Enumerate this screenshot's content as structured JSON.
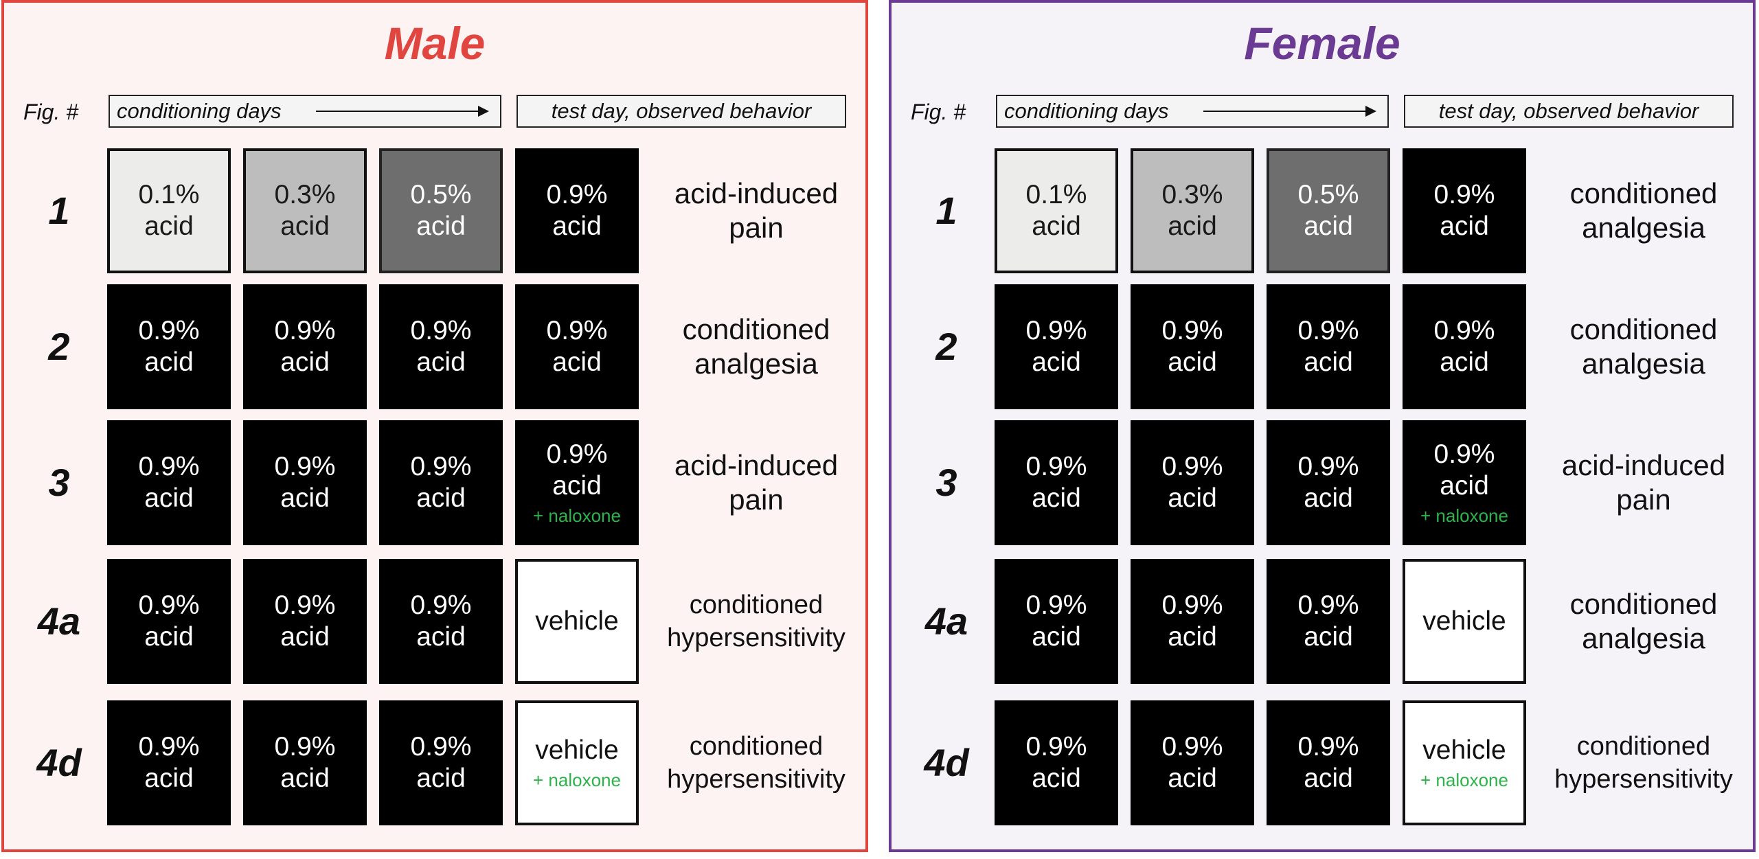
{
  "panels": {
    "male": {
      "title": "Male",
      "color": "#e0453f",
      "headers": {
        "fig": "Fig. #",
        "conditioning": "conditioning days",
        "test": "test day, observed behavior"
      },
      "rows": [
        {
          "fig": "1",
          "cells": [
            {
              "line1": "0.1%",
              "line2": "acid",
              "style": "light-gray"
            },
            {
              "line1": "0.3%",
              "line2": "acid",
              "style": "mid-gray"
            },
            {
              "line1": "0.5%",
              "line2": "acid",
              "style": "dark-gray"
            },
            {
              "line1": "0.9%",
              "line2": "acid",
              "style": "black"
            }
          ],
          "behavior": "acid-induced\npain"
        },
        {
          "fig": "2",
          "cells": [
            {
              "line1": "0.9%",
              "line2": "acid",
              "style": "black"
            },
            {
              "line1": "0.9%",
              "line2": "acid",
              "style": "black"
            },
            {
              "line1": "0.9%",
              "line2": "acid",
              "style": "black"
            },
            {
              "line1": "0.9%",
              "line2": "acid",
              "style": "black"
            }
          ],
          "behavior": "conditioned\nanalgesia"
        },
        {
          "fig": "3",
          "cells": [
            {
              "line1": "0.9%",
              "line2": "acid",
              "style": "black"
            },
            {
              "line1": "0.9%",
              "line2": "acid",
              "style": "black"
            },
            {
              "line1": "0.9%",
              "line2": "acid",
              "style": "black"
            },
            {
              "line1": "0.9%",
              "line2": "acid",
              "note": "+ naloxone",
              "style": "black"
            }
          ],
          "behavior": "acid-induced\npain"
        },
        {
          "fig": "4a",
          "cells": [
            {
              "line1": "0.9%",
              "line2": "acid",
              "style": "black"
            },
            {
              "line1": "0.9%",
              "line2": "acid",
              "style": "black"
            },
            {
              "line1": "0.9%",
              "line2": "acid",
              "style": "black"
            },
            {
              "line1": "vehicle",
              "style": "white"
            }
          ],
          "behavior": "conditioned\nhypersensitivity"
        },
        {
          "fig": "4d",
          "cells": [
            {
              "line1": "0.9%",
              "line2": "acid",
              "style": "black"
            },
            {
              "line1": "0.9%",
              "line2": "acid",
              "style": "black"
            },
            {
              "line1": "0.9%",
              "line2": "acid",
              "style": "black"
            },
            {
              "line1": "vehicle",
              "note": "+ naloxone",
              "style": "white"
            }
          ],
          "behavior": "conditioned\nhypersensitivity"
        }
      ]
    },
    "female": {
      "title": "Female",
      "color": "#6b3b94",
      "headers": {
        "fig": "Fig. #",
        "conditioning": "conditioning days",
        "test": "test day, observed behavior"
      },
      "rows": [
        {
          "fig": "1",
          "cells": [
            {
              "line1": "0.1%",
              "line2": "acid",
              "style": "light-gray"
            },
            {
              "line1": "0.3%",
              "line2": "acid",
              "style": "mid-gray"
            },
            {
              "line1": "0.5%",
              "line2": "acid",
              "style": "dark-gray"
            },
            {
              "line1": "0.9%",
              "line2": "acid",
              "style": "black"
            }
          ],
          "behavior": "conditioned\nanalgesia"
        },
        {
          "fig": "2",
          "cells": [
            {
              "line1": "0.9%",
              "line2": "acid",
              "style": "black"
            },
            {
              "line1": "0.9%",
              "line2": "acid",
              "style": "black"
            },
            {
              "line1": "0.9%",
              "line2": "acid",
              "style": "black"
            },
            {
              "line1": "0.9%",
              "line2": "acid",
              "style": "black"
            }
          ],
          "behavior": "conditioned\nanalgesia"
        },
        {
          "fig": "3",
          "cells": [
            {
              "line1": "0.9%",
              "line2": "acid",
              "style": "black"
            },
            {
              "line1": "0.9%",
              "line2": "acid",
              "style": "black"
            },
            {
              "line1": "0.9%",
              "line2": "acid",
              "style": "black"
            },
            {
              "line1": "0.9%",
              "line2": "acid",
              "note": "+ naloxone",
              "style": "black"
            }
          ],
          "behavior": "acid-induced\npain"
        },
        {
          "fig": "4a",
          "cells": [
            {
              "line1": "0.9%",
              "line2": "acid",
              "style": "black"
            },
            {
              "line1": "0.9%",
              "line2": "acid",
              "style": "black"
            },
            {
              "line1": "0.9%",
              "line2": "acid",
              "style": "black"
            },
            {
              "line1": "vehicle",
              "style": "white"
            }
          ],
          "behavior": "conditioned\nanalgesia"
        },
        {
          "fig": "4d",
          "cells": [
            {
              "line1": "0.9%",
              "line2": "acid",
              "style": "black"
            },
            {
              "line1": "0.9%",
              "line2": "acid",
              "style": "black"
            },
            {
              "line1": "0.9%",
              "line2": "acid",
              "style": "black"
            },
            {
              "line1": "vehicle",
              "note": "+ naloxone",
              "style": "white"
            }
          ],
          "behavior": "conditioned\nhypersensitivity"
        }
      ]
    }
  },
  "colors": {
    "naloxone_text": "#2db34a",
    "light_gray": "#ececea",
    "mid_gray": "#bdbdbd",
    "dark_gray": "#6e6e6e",
    "black": "#000000",
    "white": "#ffffff"
  },
  "icons": {
    "arrow": "right-arrow-icon"
  }
}
